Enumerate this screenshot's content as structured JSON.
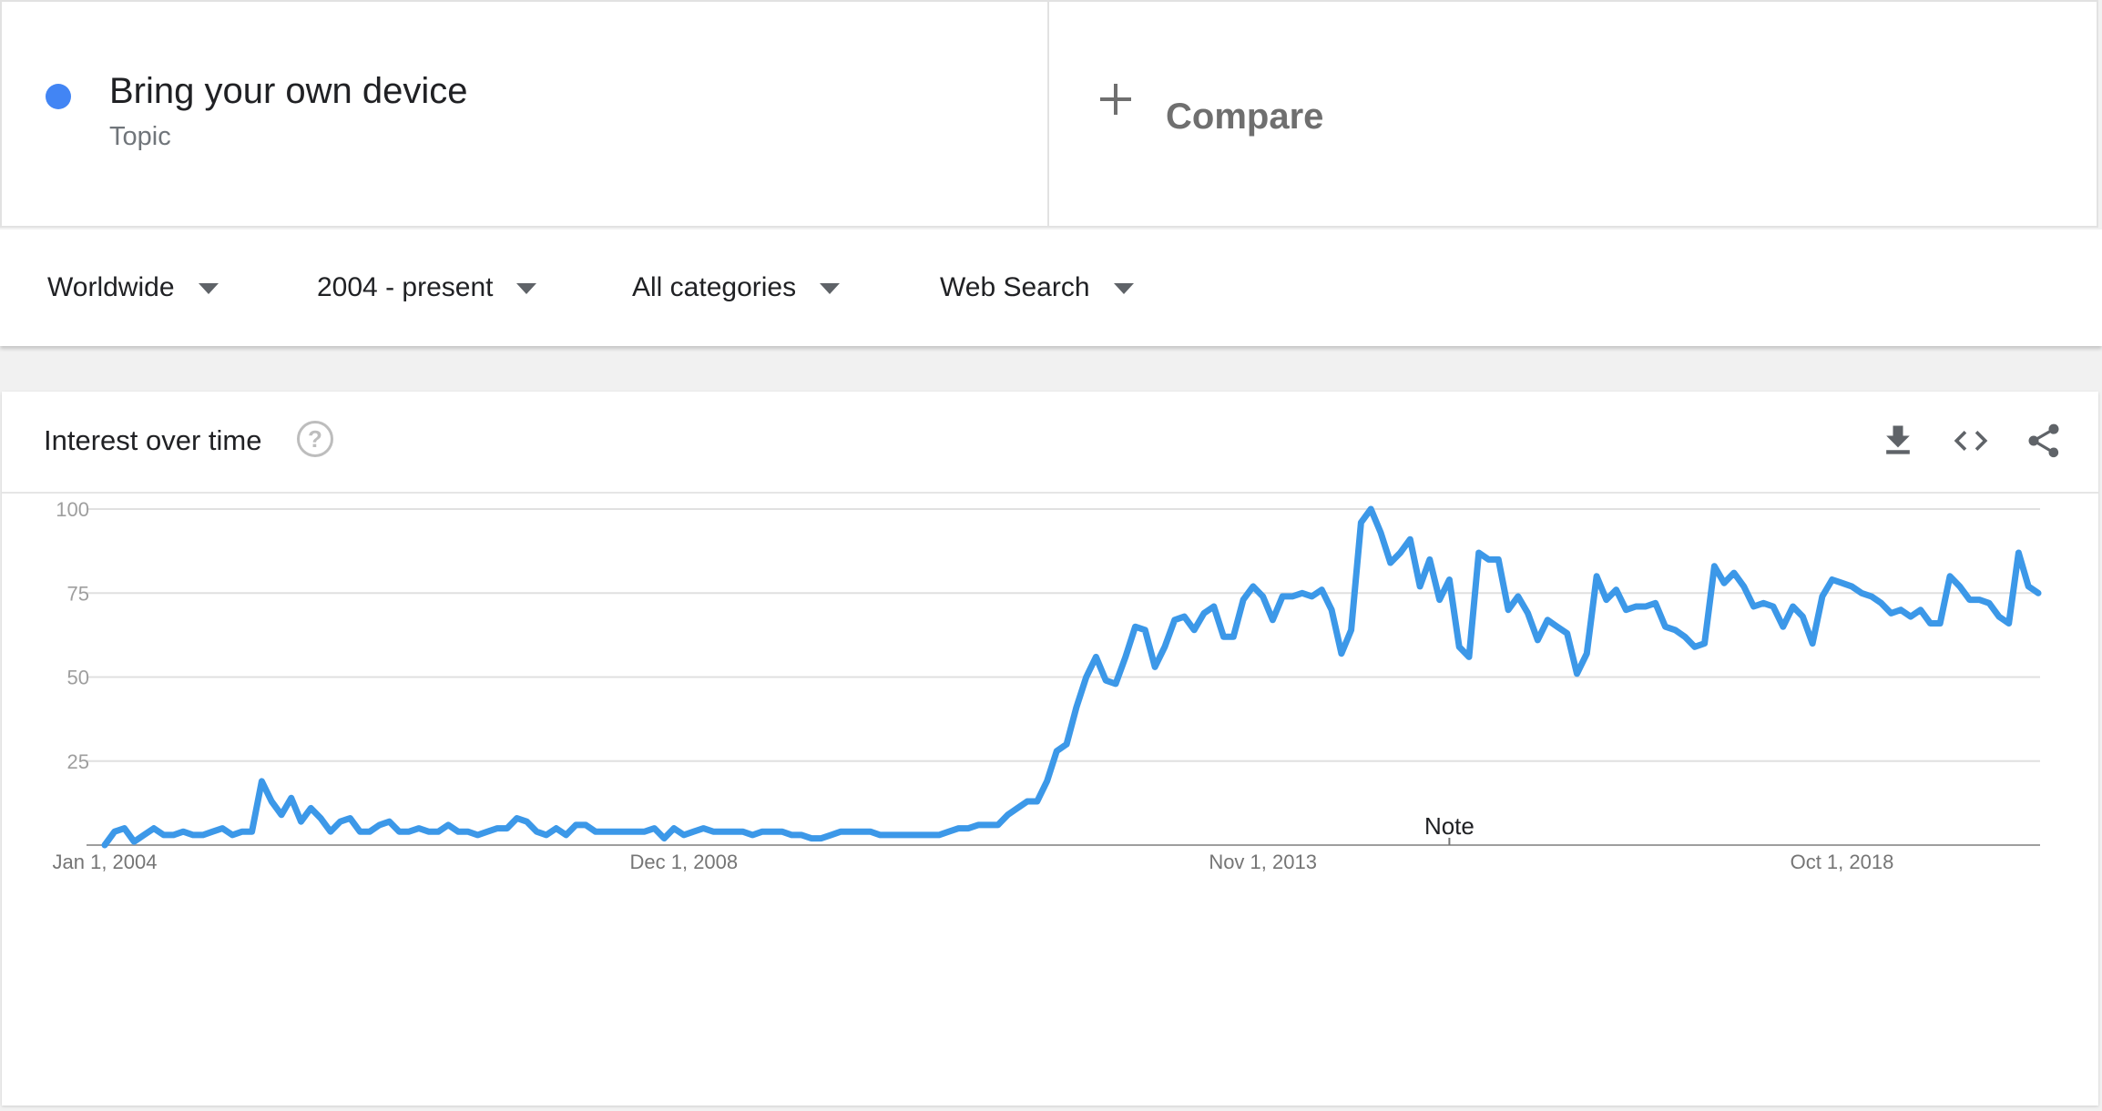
{
  "search_term": {
    "name": "Bring your own device",
    "type": "Topic",
    "color": "#4285f4"
  },
  "compare": {
    "label": "Compare"
  },
  "filters": {
    "region": "Worldwide",
    "time": "2004 - present",
    "category": "All categories",
    "property": "Web Search"
  },
  "chart_card": {
    "title": "Interest over time",
    "help_icon": "help-circle-icon",
    "tools": [
      "download-icon",
      "embed-code-icon",
      "share-icon"
    ]
  },
  "chart_data": {
    "type": "line",
    "title": "",
    "xlabel": "",
    "ylabel": "",
    "ylim": [
      0,
      100
    ],
    "yticks": [
      25,
      50,
      75,
      100
    ],
    "x_tick_labels": [
      "Jan 1, 2004",
      "Dec 1, 2008",
      "Nov 1, 2013",
      "Oct 1, 2018"
    ],
    "x_start": "Jan 2004",
    "x_end": "Apr 2020",
    "annotation": {
      "label": "Note",
      "at_month_index": 137
    },
    "grid": true,
    "color": "#3c98e8",
    "series": [
      {
        "values": [
          0,
          4,
          5,
          1,
          3,
          5,
          3,
          3,
          4,
          3,
          3,
          4,
          5,
          3,
          4,
          4,
          19,
          13,
          9,
          14,
          7,
          11,
          8,
          4,
          7,
          8,
          4,
          4,
          6,
          7,
          4,
          4,
          5,
          4,
          4,
          6,
          4,
          4,
          3,
          4,
          5,
          5,
          8,
          7,
          4,
          3,
          5,
          3,
          6,
          6,
          4,
          4,
          4,
          4,
          4,
          4,
          5,
          2,
          5,
          3,
          4,
          5,
          4,
          4,
          4,
          4,
          3,
          4,
          4,
          4,
          3,
          3,
          2,
          2,
          3,
          4,
          4,
          4,
          4,
          3,
          3,
          3,
          3,
          3,
          3,
          3,
          4,
          5,
          5,
          6,
          6,
          6,
          9,
          11,
          13,
          13,
          19,
          28,
          30,
          41,
          50,
          56,
          49,
          48,
          56,
          65,
          64,
          53,
          59,
          67,
          68,
          64,
          69,
          71,
          62,
          62,
          73,
          77,
          74,
          67,
          74,
          74,
          75,
          74,
          76,
          70,
          57,
          64,
          96,
          100,
          93,
          84,
          87,
          91,
          77,
          85,
          73,
          79,
          59,
          56,
          87,
          85,
          85,
          70,
          74,
          69,
          61,
          67,
          65,
          63,
          51,
          57,
          80,
          73,
          76,
          70,
          71,
          71,
          72,
          65,
          64,
          62,
          59,
          60,
          83,
          78,
          81,
          77,
          71,
          72,
          71,
          65,
          71,
          68,
          60,
          74,
          79,
          78,
          77,
          75,
          74,
          72,
          69,
          70,
          68,
          70,
          66,
          66,
          80,
          77,
          73,
          73,
          72,
          68,
          66,
          87,
          77,
          75
        ]
      }
    ]
  }
}
